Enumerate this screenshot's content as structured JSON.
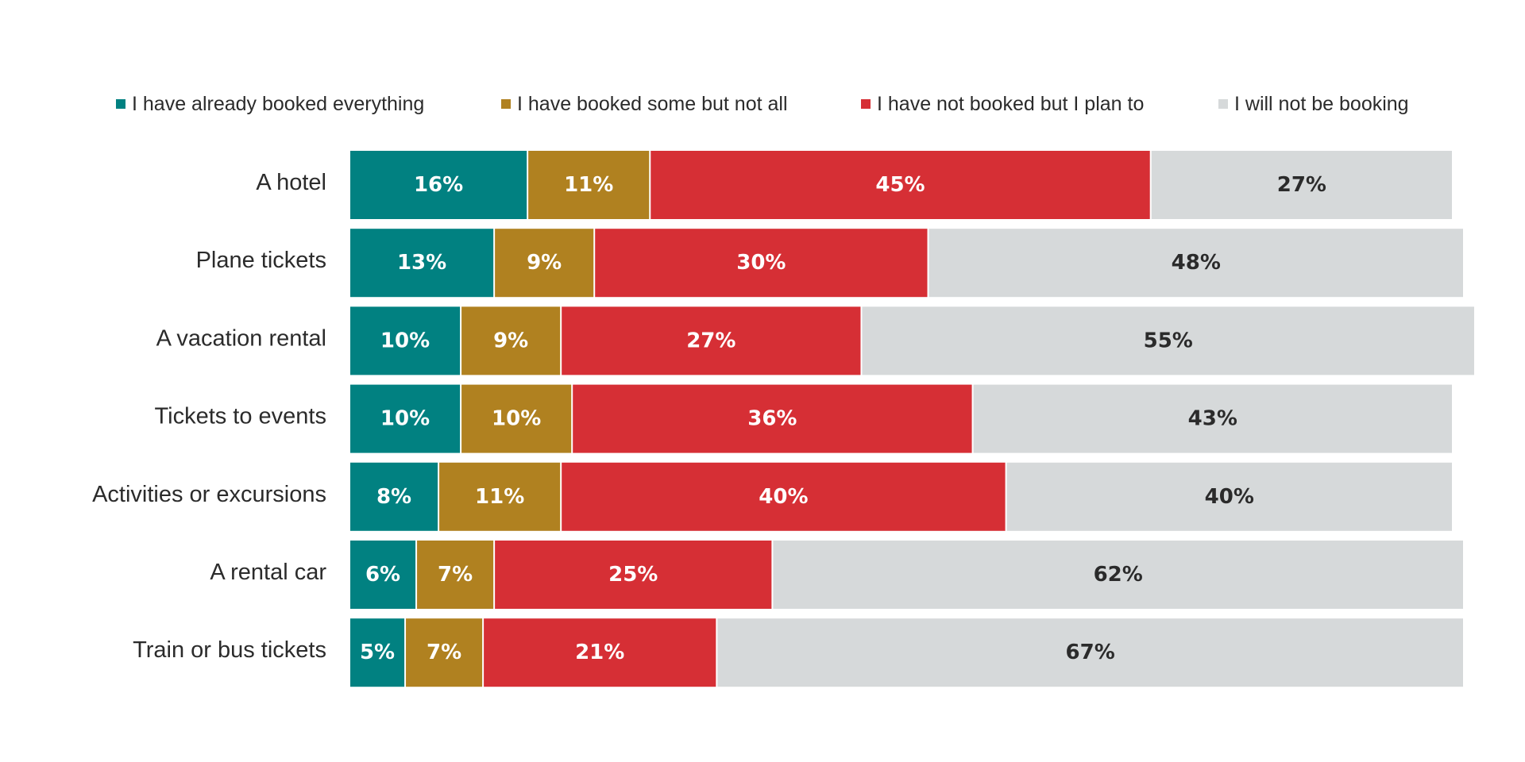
{
  "chart_data": {
    "type": "bar",
    "orientation": "horizontal",
    "stacked": true,
    "legend_position": "top",
    "grid": false,
    "xlim": [
      0,
      100
    ],
    "categories": [
      "A hotel",
      "Plane tickets",
      "A vacation rental",
      "Tickets to events",
      "Activities or excursions",
      "A rental car",
      "Train or bus tickets"
    ],
    "series": [
      {
        "name": "I have already booked everything",
        "color": "#018181",
        "label_color": "#ffffff",
        "values": [
          16,
          13,
          10,
          10,
          8,
          6,
          5
        ],
        "labels": [
          "16%",
          "13%",
          "10%",
          "10%",
          "8%",
          "6%",
          "5%"
        ]
      },
      {
        "name": "I have booked some but not all",
        "color": "#b08120",
        "label_color": "#ffffff",
        "values": [
          11,
          9,
          9,
          10,
          11,
          7,
          7
        ],
        "labels": [
          "11%",
          "9%",
          "9%",
          "10%",
          "11%",
          "7%",
          "7%"
        ]
      },
      {
        "name": "I have not booked but I plan to",
        "color": "#d62f35",
        "label_color": "#ffffff",
        "values": [
          45,
          30,
          27,
          36,
          40,
          25,
          21
        ],
        "labels": [
          "45%",
          "30%",
          "27%",
          "36%",
          "40%",
          "25%",
          "21%"
        ]
      },
      {
        "name": "I will not be booking",
        "color": "#d6d9da",
        "label_color": "#2b2b2b",
        "values": [
          27,
          48,
          55,
          43,
          40,
          62,
          67
        ],
        "labels": [
          "27%",
          "48%",
          "55%",
          "43%",
          "40%",
          "62%",
          "67%"
        ]
      }
    ]
  }
}
